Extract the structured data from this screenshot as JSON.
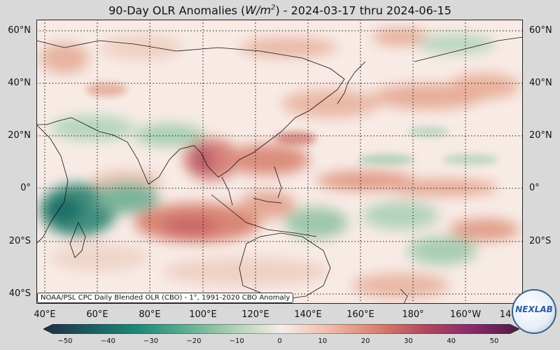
{
  "title": {
    "prefix": "90-Day OLR Anomalies (",
    "unit_main": "W/m",
    "unit_exp": "2",
    "suffix": ") - 2024-03-17 thru 2024-06-15"
  },
  "lat_labels": [
    "60°N",
    "40°N",
    "20°N",
    "0°",
    "20°S",
    "40°S"
  ],
  "lon_labels": [
    "40°E",
    "60°E",
    "80°E",
    "100°E",
    "120°E",
    "140°E",
    "160°E",
    "180°",
    "160°W",
    "14"
  ],
  "credit": "NOAA/PSL CPC Daily Blended OLR (CBO) - 1°, 1991-2020 CBO Anomaly",
  "colorbar": {
    "ticks": [
      "−50",
      "−40",
      "−30",
      "−20",
      "−10",
      "0",
      "10",
      "20",
      "30",
      "40",
      "50"
    ],
    "colors": [
      "#1f2f45",
      "#1c5d62",
      "#1f8a77",
      "#5fae8f",
      "#aed1b6",
      "#f5ede8",
      "#efbcaa",
      "#d9826e",
      "#b4475e",
      "#8a2a6a",
      "#4f1d46"
    ]
  },
  "logo": {
    "text": "NEXLAB"
  },
  "map": {
    "grid_lats": [
      "60°N",
      "40°N",
      "20°N",
      "0°",
      "20°S",
      "40°S"
    ],
    "grid_lons": [
      "40°E",
      "60°E",
      "80°E",
      "100°E",
      "120°E",
      "140°E",
      "160°E",
      "180°",
      "160°W"
    ]
  }
}
